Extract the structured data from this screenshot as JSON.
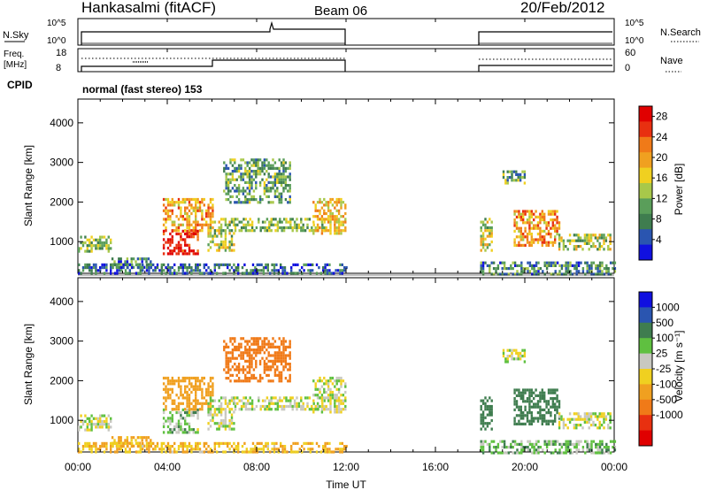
{
  "header": {
    "station": "Hankasalmi (fitACF)",
    "beam": "Beam 06",
    "date": "20/Feb/2012"
  },
  "sky_panel": {
    "left_label": "N.Sky",
    "right_label": "N.Search",
    "ytick_top": "10^5",
    "ytick_bottom": "10^0"
  },
  "freq_panel": {
    "left_label_1": "Freq.",
    "left_label_2": "[MHz]",
    "ytick_top": "18",
    "ytick_bottom": "8",
    "right_label": "Nave",
    "right_tick_top": "60",
    "right_tick_bottom": "0"
  },
  "cpid": {
    "label": "CPID",
    "value": "normal (fast stereo) 153"
  },
  "colors": {
    "power": [
      "#1010e0",
      "#2a55b0",
      "#3f7d4f",
      "#5a9e5a",
      "#a8c84a",
      "#f0d020",
      "#f0a020",
      "#f07a18",
      "#e83010",
      "#e00000"
    ],
    "velocity": [
      "#1010e0",
      "#2a55b0",
      "#3f7d4f",
      "#5fc040",
      "#c8c8c0",
      "#f0d020",
      "#f0a020",
      "#f07a18",
      "#e83010",
      "#e00000"
    ],
    "background": "#ffffff"
  },
  "chart_data": [
    {
      "type": "heatmap",
      "title": "Power",
      "xlabel": "",
      "ylabel": "Slant Range [km]",
      "x_range_hours": [
        0,
        24
      ],
      "xticks": [
        "00:00",
        "04:00",
        "08:00",
        "12:00",
        "16:00",
        "20:00",
        "00:00"
      ],
      "ylim_km": [
        200,
        4600
      ],
      "yticks": [
        "1000",
        "2000",
        "3000",
        "4000"
      ],
      "colorbar": {
        "label": "Power [dB]",
        "ticks": [
          "4",
          "8",
          "12",
          "16",
          "20",
          "24",
          "28"
        ],
        "range": [
          0,
          30
        ]
      },
      "data_gaps_hours": [
        [
          12.0,
          18.0
        ]
      ],
      "echo_regions": [
        {
          "t0": 0.0,
          "t1": 1.5,
          "r0": 750,
          "r1": 1150,
          "value_db": 12
        },
        {
          "t0": 1.5,
          "t1": 3.3,
          "r0": 350,
          "r1": 600,
          "value_db": 8
        },
        {
          "t0": 0.0,
          "t1": 12.0,
          "r0": 200,
          "r1": 450,
          "value_db": 6
        },
        {
          "t0": 3.8,
          "t1": 5.4,
          "r0": 700,
          "r1": 1300,
          "value_db": 28
        },
        {
          "t0": 3.8,
          "t1": 6.0,
          "r0": 1300,
          "r1": 2100,
          "value_db": 20
        },
        {
          "t0": 5.8,
          "t1": 7.0,
          "r0": 800,
          "r1": 1600,
          "value_db": 14
        },
        {
          "t0": 6.5,
          "t1": 9.5,
          "r0": 2000,
          "r1": 3100,
          "value_db": 10
        },
        {
          "t0": 7.0,
          "t1": 11.0,
          "r0": 1300,
          "r1": 1600,
          "value_db": 12
        },
        {
          "t0": 10.5,
          "t1": 12.0,
          "r0": 1200,
          "r1": 2100,
          "value_db": 18
        },
        {
          "t0": 18.0,
          "t1": 18.5,
          "r0": 800,
          "r1": 1600,
          "value_db": 14
        },
        {
          "t0": 19.5,
          "t1": 21.5,
          "r0": 900,
          "r1": 1800,
          "value_db": 20
        },
        {
          "t0": 21.5,
          "t1": 23.8,
          "r0": 800,
          "r1": 1200,
          "value_db": 14
        },
        {
          "t0": 18.0,
          "t1": 24.0,
          "r0": 200,
          "r1": 500,
          "value_db": 8
        },
        {
          "t0": 19.0,
          "t1": 20.0,
          "r0": 2500,
          "r1": 2800,
          "value_db": 10
        }
      ]
    },
    {
      "type": "heatmap",
      "title": "Velocity",
      "xlabel": "Time UT",
      "ylabel": "Slant Range [km]",
      "x_range_hours": [
        0,
        24
      ],
      "xticks": [
        "00:00",
        "04:00",
        "08:00",
        "12:00",
        "16:00",
        "20:00",
        "00:00"
      ],
      "ylim_km": [
        200,
        4600
      ],
      "yticks": [
        "1000",
        "2000",
        "3000",
        "4000"
      ],
      "colorbar": {
        "label": "Velocity [m s⁻¹]",
        "ticks": [
          "1000",
          "500",
          "100",
          "25",
          "-25",
          "-100",
          "-500",
          "-1000"
        ]
      },
      "data_gaps_hours": [
        [
          12.0,
          18.0
        ]
      ],
      "echo_regions": [
        {
          "t0": 0.0,
          "t1": 1.5,
          "r0": 750,
          "r1": 1150,
          "value_ms": 0
        },
        {
          "t0": 1.5,
          "t1": 3.3,
          "r0": 350,
          "r1": 600,
          "value_ms": -150
        },
        {
          "t0": 0.0,
          "t1": 12.0,
          "r0": 200,
          "r1": 450,
          "value_ms": -100
        },
        {
          "t0": 3.8,
          "t1": 5.4,
          "r0": 700,
          "r1": 1300,
          "value_ms": 50
        },
        {
          "t0": 3.8,
          "t1": 6.0,
          "r0": 1300,
          "r1": 2100,
          "value_ms": -200
        },
        {
          "t0": 5.8,
          "t1": 7.0,
          "r0": 800,
          "r1": 1600,
          "value_ms": 0
        },
        {
          "t0": 6.5,
          "t1": 9.5,
          "r0": 2000,
          "r1": 3100,
          "value_ms": -400
        },
        {
          "t0": 7.0,
          "t1": 11.0,
          "r0": 1300,
          "r1": 1600,
          "value_ms": 0
        },
        {
          "t0": 10.5,
          "t1": 12.0,
          "r0": 1200,
          "r1": 2100,
          "value_ms": 0
        },
        {
          "t0": 18.0,
          "t1": 18.5,
          "r0": 800,
          "r1": 1600,
          "value_ms": 300
        },
        {
          "t0": 19.5,
          "t1": 21.5,
          "r0": 900,
          "r1": 1800,
          "value_ms": 200
        },
        {
          "t0": 21.5,
          "t1": 23.8,
          "r0": 800,
          "r1": 1200,
          "value_ms": 0
        },
        {
          "t0": 18.0,
          "t1": 24.0,
          "r0": 200,
          "r1": 500,
          "value_ms": 60
        },
        {
          "t0": 19.0,
          "t1": 20.0,
          "r0": 2500,
          "r1": 2800,
          "value_ms": 0
        }
      ]
    }
  ]
}
